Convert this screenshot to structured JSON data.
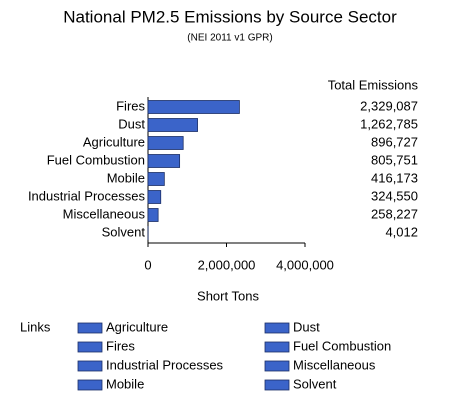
{
  "chart_data": {
    "type": "bar",
    "orientation": "horizontal",
    "title": "National PM2.5 Emissions by Source Sector",
    "subtitle": "(NEI 2011 v1 GPR)",
    "value_header": "Total Emissions",
    "x_label": "Short Tons",
    "categories": [
      "Fires",
      "Dust",
      "Agriculture",
      "Fuel Combustion",
      "Mobile",
      "Industrial Processes",
      "Miscellaneous",
      "Solvent"
    ],
    "values": [
      2329087,
      1262785,
      896727,
      805751,
      416173,
      324550,
      258227,
      4012
    ],
    "value_labels": [
      "2,329,087",
      "1,262,785",
      "896,727",
      "805,751",
      "416,173",
      "324,550",
      "258,227",
      "4,012"
    ],
    "color": "#3b64c9",
    "xlim": [
      0,
      4000000
    ],
    "xticks": [
      0,
      {
        "value": 2000000,
        "label": "2,000,000"
      },
      {
        "value": 4000000,
        "label": "4,000,000"
      }
    ],
    "links": {
      "label": "Links",
      "items": [
        "Agriculture",
        "Dust",
        "Fires",
        "Fuel Combustion",
        "Industrial Processes",
        "Miscellaneous",
        "Mobile",
        "Solvent"
      ]
    }
  }
}
